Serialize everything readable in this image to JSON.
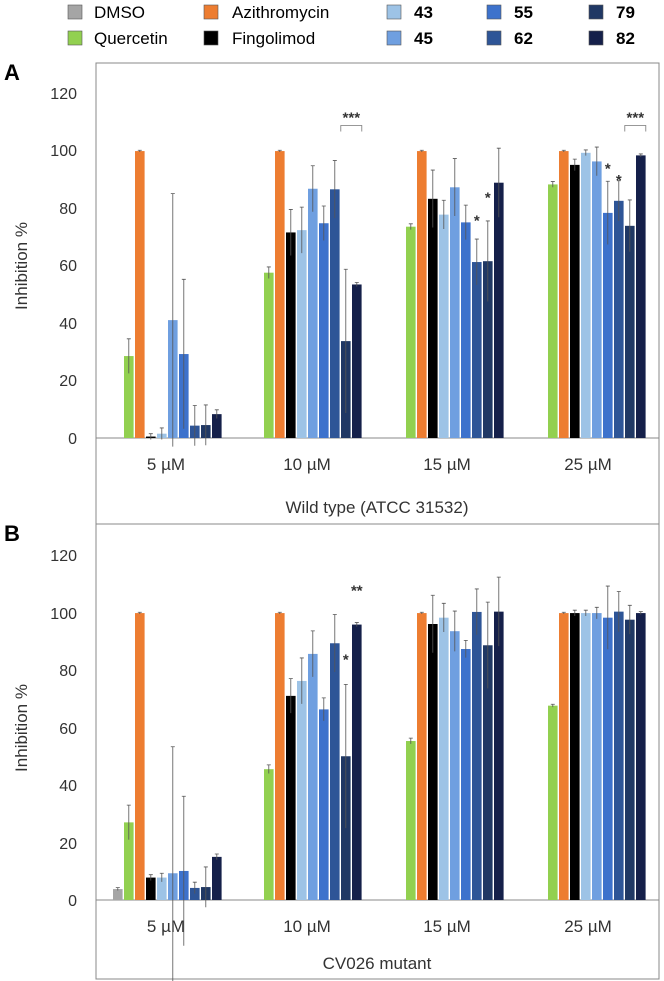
{
  "legend": [
    {
      "name": "DMSO",
      "color": "#a5a5a5",
      "bold": false
    },
    {
      "name": "Quercetin",
      "color": "#92d050",
      "bold": false
    },
    {
      "name": "Azithromycin",
      "color": "#ed7d31",
      "bold": false
    },
    {
      "name": "Fingolimod",
      "color": "#000000",
      "bold": false
    },
    {
      "name": "43",
      "color": "#9dc3e6",
      "bold": true
    },
    {
      "name": "45",
      "color": "#6f9fe0",
      "bold": true
    },
    {
      "name": "55",
      "color": "#3d72cc",
      "bold": true
    },
    {
      "name": "62",
      "color": "#2e5597",
      "bold": true
    },
    {
      "name": "79",
      "color": "#203864",
      "bold": true
    },
    {
      "name": "82",
      "color": "#15204a",
      "bold": true
    }
  ],
  "chart_data": [
    {
      "panel": "A",
      "type": "bar",
      "ylabel": "Inhibition %",
      "xlabel": "Wild type (ATCC 31532)",
      "ylim": [
        0,
        120
      ],
      "yticks": [
        "0",
        "20",
        "40",
        "60",
        "80",
        "100",
        "120"
      ],
      "categories": [
        "5 µM",
        "10 µM",
        "15 µM",
        "25 µM"
      ],
      "series": [
        {
          "name": "DMSO",
          "values": [
            0,
            0,
            0,
            0
          ],
          "errors": [
            0,
            0,
            0,
            0
          ]
        },
        {
          "name": "Quercetin",
          "values": [
            28.5,
            57.5,
            73.5,
            88.2
          ],
          "errors": [
            6,
            2,
            1,
            1
          ]
        },
        {
          "name": "Azithromycin",
          "values": [
            99.8,
            99.8,
            99.8,
            99.8
          ],
          "errors": [
            0.3,
            0.3,
            0.3,
            0.3
          ]
        },
        {
          "name": "Fingolimod",
          "values": [
            0.5,
            71.5,
            83.2,
            95
          ],
          "errors": [
            1,
            8,
            10,
            2
          ]
        },
        {
          "name": "43",
          "values": [
            1.5,
            72.3,
            77.7,
            99.2
          ],
          "errors": [
            2,
            8,
            5,
            1
          ]
        },
        {
          "name": "45",
          "values": [
            41,
            86.7,
            87.2,
            96.2
          ],
          "errors": [
            44,
            8,
            10,
            5
          ]
        },
        {
          "name": "55",
          "values": [
            29.2,
            74.7,
            75,
            78.3
          ],
          "errors": [
            26,
            6,
            6,
            11
          ]
        },
        {
          "name": "62",
          "values": [
            4.3,
            86.5,
            61.2,
            82.5
          ],
          "errors": [
            7,
            10,
            8,
            7
          ]
        },
        {
          "name": "79",
          "values": [
            4.5,
            33.7,
            61.5,
            73.8
          ],
          "errors": [
            7,
            25,
            14,
            9
          ]
        },
        {
          "name": "82",
          "values": [
            8.3,
            53.4,
            88.8,
            98.3
          ],
          "errors": [
            1.5,
            0.7,
            12,
            0.5
          ]
        }
      ],
      "annotations": [
        {
          "text": "***",
          "category": 1,
          "series": [
            8,
            9
          ],
          "y": 108,
          "bracket": true
        },
        {
          "text": "*",
          "category": 2,
          "series": [
            7
          ],
          "y": 74,
          "bracket": false
        },
        {
          "text": "*",
          "category": 2,
          "series": [
            8
          ],
          "y": 82,
          "bracket": false
        },
        {
          "text": "*",
          "category": 3,
          "series": [
            6
          ],
          "y": 92,
          "bracket": false
        },
        {
          "text": "*",
          "category": 3,
          "series": [
            7
          ],
          "y": 88,
          "bracket": false
        },
        {
          "text": "***",
          "category": 3,
          "series": [
            8,
            9
          ],
          "y": 108,
          "bracket": true
        }
      ]
    },
    {
      "panel": "B",
      "type": "bar",
      "ylabel": "Inhibition %",
      "xlabel": "CV026 mutant",
      "ylim": [
        0,
        120
      ],
      "yticks": [
        "0",
        "20",
        "40",
        "60",
        "80",
        "100",
        "120"
      ],
      "categories": [
        "5 µM",
        "10 µM",
        "15 µM",
        "25 µM"
      ],
      "series": [
        {
          "name": "DMSO",
          "values": [
            3.8,
            0,
            0,
            0
          ],
          "errors": [
            0.5,
            0,
            0,
            0
          ]
        },
        {
          "name": "Quercetin",
          "values": [
            27,
            45.5,
            55.3,
            67.6
          ],
          "errors": [
            6,
            1.5,
            1,
            0.5
          ]
        },
        {
          "name": "Azithromycin",
          "values": [
            99.8,
            99.8,
            99.8,
            99.8
          ],
          "errors": [
            0.3,
            0.3,
            0.3,
            0.3
          ]
        },
        {
          "name": "Fingolimod",
          "values": [
            7.8,
            71,
            96,
            99.8
          ],
          "errors": [
            1,
            6,
            10,
            1
          ]
        },
        {
          "name": "43",
          "values": [
            7.8,
            76.2,
            98.2,
            99.8
          ],
          "errors": [
            1.5,
            8,
            5,
            1
          ]
        },
        {
          "name": "45",
          "values": [
            9.3,
            85.6,
            93.5,
            99.8
          ],
          "errors": [
            44,
            8,
            7,
            2
          ]
        },
        {
          "name": "55",
          "values": [
            10.1,
            66.3,
            87.3,
            98.2
          ],
          "errors": [
            26,
            4,
            3,
            11
          ]
        },
        {
          "name": "62",
          "values": [
            4.2,
            89.3,
            100.2,
            100.3
          ],
          "errors": [
            2,
            10,
            8,
            7
          ]
        },
        {
          "name": "79",
          "values": [
            4.5,
            50,
            88.6,
            97.5
          ],
          "errors": [
            7,
            25,
            15,
            5
          ]
        },
        {
          "name": "82",
          "values": [
            15,
            95.8,
            100.3,
            99.8
          ],
          "errors": [
            1,
            0.7,
            12,
            0.5
          ]
        }
      ],
      "annotations": [
        {
          "text": "*",
          "category": 1,
          "series": [
            8
          ],
          "y": 82,
          "bracket": false
        },
        {
          "text": "**",
          "category": 1,
          "series": [
            9
          ],
          "y": 106,
          "bracket": false
        }
      ]
    }
  ]
}
